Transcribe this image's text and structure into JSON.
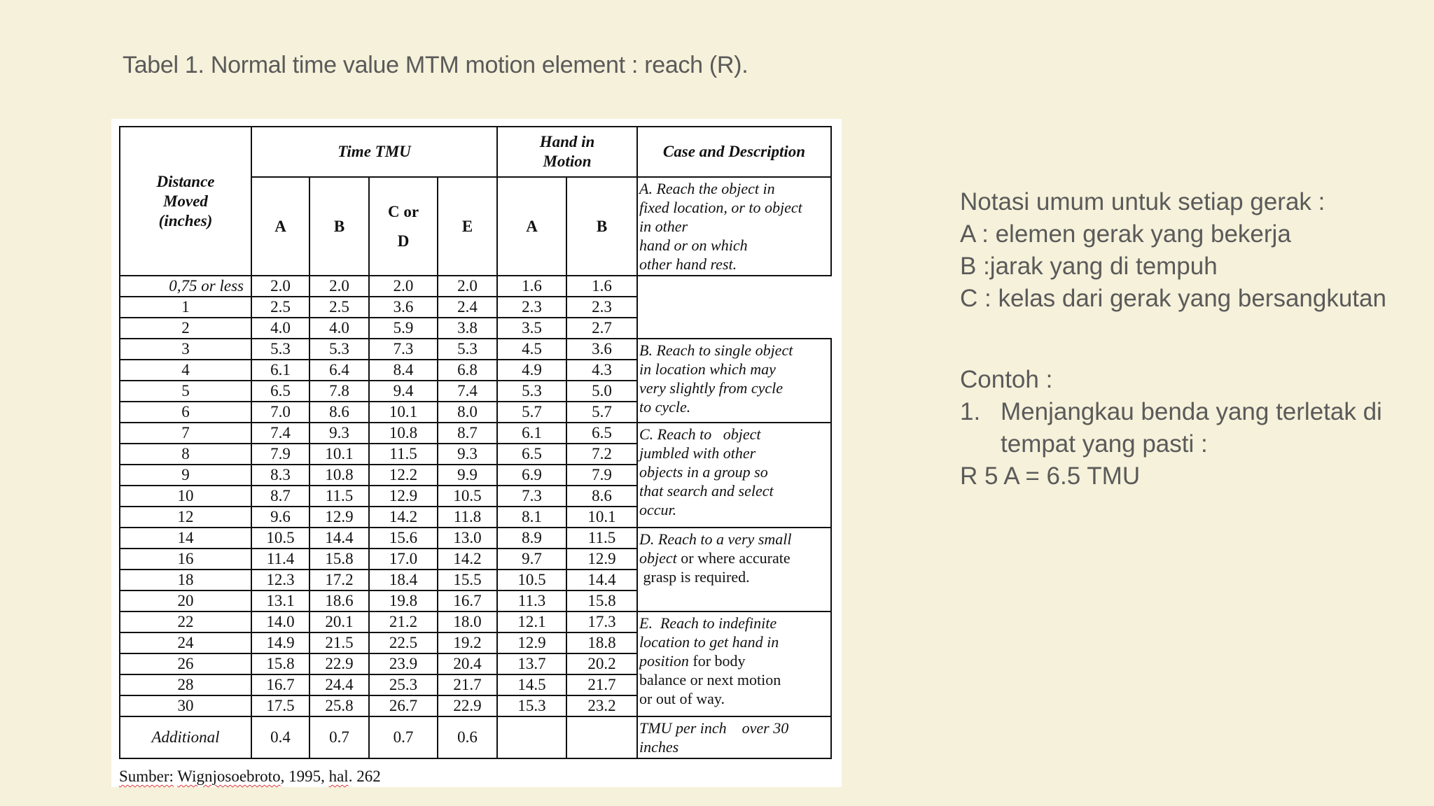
{
  "title": "Tabel 1. Normal time value MTM motion element : reach (R).",
  "table": {
    "headers": {
      "distance": [
        "Distance",
        "Moved",
        "(inches)"
      ],
      "time_tmu": "Time TMU",
      "hand_in_motion": [
        "Hand in",
        "Motion"
      ],
      "case": "Case and Description",
      "sub": [
        "A",
        "B",
        "C or",
        "D",
        "E",
        "A",
        "B"
      ]
    },
    "rows": [
      [
        "0,75 or less",
        "2.0",
        "2.0",
        "2.0",
        "2.0",
        "1.6",
        "1.6"
      ],
      [
        "1",
        "2.5",
        "2.5",
        "3.6",
        "2.4",
        "2.3",
        "2.3"
      ],
      [
        "2",
        "4.0",
        "4.0",
        "5.9",
        "3.8",
        "3.5",
        "2.7"
      ],
      [
        "3",
        "5.3",
        "5.3",
        "7.3",
        "5.3",
        "4.5",
        "3.6"
      ],
      [
        "4",
        "6.1",
        "6.4",
        "8.4",
        "6.8",
        "4.9",
        "4.3"
      ],
      [
        "5",
        "6.5",
        "7.8",
        "9.4",
        "7.4",
        "5.3",
        "5.0"
      ],
      [
        "6",
        "7.0",
        "8.6",
        "10.1",
        "8.0",
        "5.7",
        "5.7"
      ],
      [
        "7",
        "7.4",
        "9.3",
        "10.8",
        "8.7",
        "6.1",
        "6.5"
      ],
      [
        "8",
        "7.9",
        "10.1",
        "11.5",
        "9.3",
        "6.5",
        "7.2"
      ],
      [
        "9",
        "8.3",
        "10.8",
        "12.2",
        "9.9",
        "6.9",
        "7.9"
      ],
      [
        "10",
        "8.7",
        "11.5",
        "12.9",
        "10.5",
        "7.3",
        "8.6"
      ],
      [
        "12",
        "9.6",
        "12.9",
        "14.2",
        "11.8",
        "8.1",
        "10.1"
      ],
      [
        "14",
        "10.5",
        "14.4",
        "15.6",
        "13.0",
        "8.9",
        "11.5"
      ],
      [
        "16",
        "11.4",
        "15.8",
        "17.0",
        "14.2",
        "9.7",
        "12.9"
      ],
      [
        "18",
        "12.3",
        "17.2",
        "18.4",
        "15.5",
        "10.5",
        "14.4"
      ],
      [
        "20",
        "13.1",
        "18.6",
        "19.8",
        "16.7",
        "11.3",
        "15.8"
      ],
      [
        "22",
        "14.0",
        "20.1",
        "21.2",
        "18.0",
        "12.1",
        "17.3"
      ],
      [
        "24",
        "14.9",
        "21.5",
        "22.5",
        "19.2",
        "12.9",
        "18.8"
      ],
      [
        "26",
        "15.8",
        "22.9",
        "23.9",
        "20.4",
        "13.7",
        "20.2"
      ],
      [
        "28",
        "16.7",
        "24.4",
        "25.3",
        "21.7",
        "14.5",
        "21.7"
      ],
      [
        "30",
        "17.5",
        "25.8",
        "26.7",
        "22.9",
        "15.3",
        "23.2"
      ]
    ],
    "additional": [
      "Additional",
      "0.4",
      "0.7",
      "0.7",
      "0.6",
      "",
      ""
    ],
    "descriptions": [
      {
        "start": 0,
        "span": 3,
        "lines": [
          [
            "A. Reach the object in",
            ""
          ],
          [
            "fixed location, or to object",
            ""
          ],
          [
            "in other",
            ""
          ],
          [
            "hand or on which",
            ""
          ],
          [
            "other hand rest.",
            ""
          ]
        ]
      },
      {
        "start": 3,
        "span": 4,
        "lines": [
          [
            "B. Reach to single object",
            ""
          ],
          [
            "in location which may",
            ""
          ],
          [
            "very slightly from cycle",
            ""
          ],
          [
            "to cycle.",
            ""
          ]
        ]
      },
      {
        "start": 7,
        "span": 5,
        "lines": [
          [
            "C. Reach to   object",
            ""
          ],
          [
            "jumbled with other",
            ""
          ],
          [
            "objects in a group so",
            ""
          ],
          [
            "that search and select",
            ""
          ],
          [
            "occur.",
            ""
          ]
        ]
      },
      {
        "start": 12,
        "span": 4,
        "lines": [
          [
            "D. Reach to a very small",
            ""
          ],
          [
            "object",
            " or where accurate"
          ],
          [
            "",
            " grasp is required."
          ]
        ]
      },
      {
        "start": 16,
        "span": 5,
        "lines": [
          [
            "E.  Reach to indefinite",
            ""
          ],
          [
            "location to get hand in",
            ""
          ],
          [
            "position",
            " for body"
          ],
          [
            "",
            "balance or next motion"
          ],
          [
            "",
            "or out of way."
          ]
        ]
      }
    ],
    "additional_desc": [
      "TMU per inch    over 30",
      "inches"
    ],
    "source": {
      "prefix": "Sumber:",
      "author": "Wignjosoebroto",
      "year": ", 1995, ",
      "hal": "hal",
      "page": ". 262"
    }
  },
  "notes": {
    "heading": "Notasi umum untuk setiap gerak :",
    "items": [
      "A : elemen gerak yang bekerja",
      "B :jarak yang di tempuh",
      "C : kelas dari gerak yang bersangkutan"
    ],
    "example_heading": "Contoh :",
    "example_number": "1.",
    "example_lines": [
      "Menjangkau benda yang terletak di",
      "tempat yang pasti :"
    ],
    "result": "R 5 A = 6.5 TMU"
  }
}
